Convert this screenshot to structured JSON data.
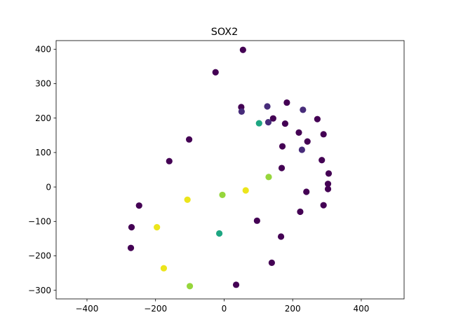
{
  "chart_data": {
    "type": "scatter",
    "title": "SOX2",
    "xlabel": "",
    "ylabel": "",
    "xlim": [
      -490,
      525
    ],
    "ylim": [
      -325,
      425
    ],
    "xticks": [
      -400,
      -200,
      0,
      200,
      400
    ],
    "yticks": [
      -300,
      -200,
      -100,
      0,
      100,
      200,
      300,
      400
    ],
    "xtick_labels": [
      "−400",
      "−200",
      "0",
      "200",
      "400"
    ],
    "ytick_labels": [
      "−300",
      "−200",
      "−100",
      "0",
      "100",
      "200",
      "300",
      "400"
    ],
    "grid": false,
    "colormap": "viridis",
    "points": [
      {
        "x": 55,
        "y": 398,
        "v": 0.0
      },
      {
        "x": -25,
        "y": 333,
        "v": 0.0
      },
      {
        "x": 50,
        "y": 232,
        "v": 0.0
      },
      {
        "x": 183,
        "y": 245,
        "v": 0.0
      },
      {
        "x": 143,
        "y": 199,
        "v": 0.0
      },
      {
        "x": 178,
        "y": 184,
        "v": 0.0
      },
      {
        "x": 272,
        "y": 197,
        "v": 0.0
      },
      {
        "x": 218,
        "y": 158,
        "v": 0.0
      },
      {
        "x": 290,
        "y": 153,
        "v": 0.0
      },
      {
        "x": 243,
        "y": 132,
        "v": 0.0
      },
      {
        "x": 170,
        "y": 118,
        "v": 0.0
      },
      {
        "x": -102,
        "y": 138,
        "v": 0.0
      },
      {
        "x": -160,
        "y": 75,
        "v": 0.0
      },
      {
        "x": 285,
        "y": 78,
        "v": 0.0
      },
      {
        "x": 168,
        "y": 55,
        "v": 0.0
      },
      {
        "x": 305,
        "y": 39,
        "v": 0.0
      },
      {
        "x": 303,
        "y": 9,
        "v": 0.0
      },
      {
        "x": 303,
        "y": -6,
        "v": 0.0
      },
      {
        "x": 240,
        "y": -14,
        "v": 0.0
      },
      {
        "x": 290,
        "y": -53,
        "v": 0.0
      },
      {
        "x": 222,
        "y": -72,
        "v": 0.0
      },
      {
        "x": 96,
        "y": -98,
        "v": 0.0
      },
      {
        "x": 166,
        "y": -144,
        "v": 0.0
      },
      {
        "x": 139,
        "y": -220,
        "v": 0.0
      },
      {
        "x": 35,
        "y": -284,
        "v": 0.0
      },
      {
        "x": -248,
        "y": -54,
        "v": 0.0
      },
      {
        "x": -270,
        "y": -117,
        "v": 0.0
      },
      {
        "x": -272,
        "y": -177,
        "v": 0.0
      },
      {
        "x": 126,
        "y": 234,
        "v": 0.15
      },
      {
        "x": 230,
        "y": 224,
        "v": 0.15
      },
      {
        "x": 51,
        "y": 219,
        "v": 0.15
      },
      {
        "x": 129,
        "y": 188,
        "v": 0.15
      },
      {
        "x": 227,
        "y": 108,
        "v": 0.15
      },
      {
        "x": 102,
        "y": 185,
        "v": 0.6
      },
      {
        "x": -14,
        "y": -135,
        "v": 0.6
      },
      {
        "x": 130,
        "y": 29,
        "v": 0.85
      },
      {
        "x": -5,
        "y": -23,
        "v": 0.85
      },
      {
        "x": -100,
        "y": -288,
        "v": 0.85
      },
      {
        "x": 63,
        "y": -10,
        "v": 1.0
      },
      {
        "x": -107,
        "y": -37,
        "v": 1.0
      },
      {
        "x": -196,
        "y": -117,
        "v": 1.0
      },
      {
        "x": -176,
        "y": -236,
        "v": 1.0
      }
    ]
  }
}
